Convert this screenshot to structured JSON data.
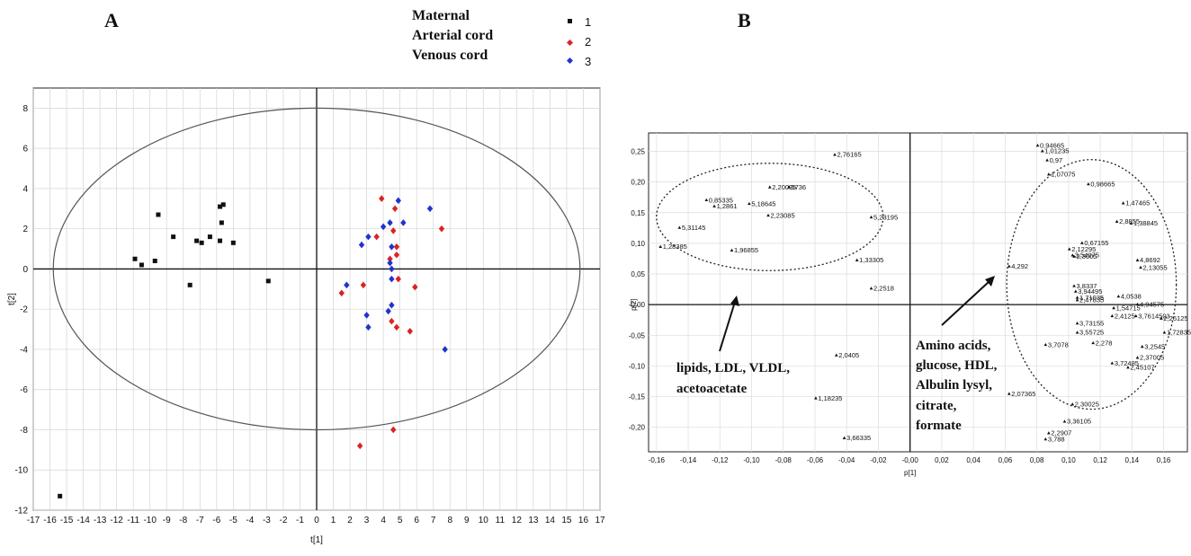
{
  "panel_labels": {
    "a": "A",
    "b": "B"
  },
  "chart_data": [
    {
      "type": "scatter",
      "panel": "A",
      "xlabel": "t[1]",
      "ylabel": "t[2]",
      "xlim": [
        -17,
        17
      ],
      "ylim": [
        -12,
        9
      ],
      "xticks": [
        -17,
        -16,
        -15,
        -14,
        -13,
        -12,
        -11,
        -10,
        -9,
        -8,
        -7,
        -6,
        -5,
        -4,
        -3,
        -2,
        -1,
        0,
        1,
        2,
        3,
        4,
        5,
        6,
        7,
        8,
        9,
        10,
        11,
        12,
        13,
        14,
        15,
        16,
        17
      ],
      "yticks": [
        -12,
        -10,
        -8,
        -6,
        -4,
        -2,
        0,
        2,
        4,
        6,
        8
      ],
      "grid": true,
      "ellipse": {
        "cx": 0,
        "cy": 0,
        "rx": 15.8,
        "ry": 8
      },
      "legend": {
        "position": "top",
        "entries": [
          {
            "name": "Maternal",
            "key": "1",
            "color": "#111111",
            "marker": "square"
          },
          {
            "name": "Arterial cord",
            "key": "2",
            "color": "#dd2222",
            "marker": "diamond"
          },
          {
            "name": "Venous cord",
            "key": "3",
            "color": "#2233cc",
            "marker": "diamond"
          }
        ]
      },
      "series": [
        {
          "name": "Maternal",
          "color": "#111111",
          "marker": "square",
          "points": [
            [
              -9.5,
              2.7
            ],
            [
              -8.6,
              1.6
            ],
            [
              -7.2,
              1.4
            ],
            [
              -6.9,
              1.3
            ],
            [
              -6.4,
              1.6
            ],
            [
              -5.8,
              3.1
            ],
            [
              -5.6,
              3.2
            ],
            [
              -5.7,
              2.3
            ],
            [
              -5.8,
              1.4
            ],
            [
              -5.0,
              1.3
            ],
            [
              -10.9,
              0.5
            ],
            [
              -10.5,
              0.2
            ],
            [
              -9.7,
              0.4
            ],
            [
              -7.6,
              -0.8
            ],
            [
              -2.9,
              -0.6
            ],
            [
              -15.4,
              -11.3
            ]
          ]
        },
        {
          "name": "Arterial cord",
          "color": "#dd2222",
          "marker": "diamond",
          "points": [
            [
              3.9,
              3.5
            ],
            [
              4.7,
              3.0
            ],
            [
              4.6,
              1.9
            ],
            [
              3.6,
              1.6
            ],
            [
              4.8,
              1.1
            ],
            [
              7.5,
              2.0
            ],
            [
              4.8,
              0.7
            ],
            [
              4.4,
              0.5
            ],
            [
              1.5,
              -1.2
            ],
            [
              2.8,
              -0.8
            ],
            [
              4.9,
              -0.5
            ],
            [
              5.9,
              -0.9
            ],
            [
              4.5,
              -2.6
            ],
            [
              4.8,
              -2.9
            ],
            [
              5.6,
              -3.1
            ],
            [
              2.6,
              -8.8
            ],
            [
              4.6,
              -8.0
            ]
          ]
        },
        {
          "name": "Venous cord",
          "color": "#2233cc",
          "marker": "diamond",
          "points": [
            [
              4.9,
              3.4
            ],
            [
              5.2,
              2.3
            ],
            [
              6.8,
              3.0
            ],
            [
              4.0,
              2.1
            ],
            [
              4.4,
              2.3
            ],
            [
              2.7,
              1.2
            ],
            [
              3.1,
              1.6
            ],
            [
              4.5,
              1.1
            ],
            [
              4.4,
              0.3
            ],
            [
              4.5,
              0.0
            ],
            [
              1.8,
              -0.8
            ],
            [
              4.5,
              -0.5
            ],
            [
              4.5,
              -1.8
            ],
            [
              3.0,
              -2.3
            ],
            [
              3.1,
              -2.9
            ],
            [
              4.3,
              -2.1
            ],
            [
              7.7,
              -4.0
            ]
          ]
        }
      ]
    },
    {
      "type": "scatter",
      "panel": "B",
      "xlabel": "p[1]",
      "ylabel": "p[2]",
      "xlim": [
        -0.165,
        0.175
      ],
      "ylim": [
        -0.24,
        0.28
      ],
      "xticks": [
        "-0,16",
        "-0,14",
        "-0,12",
        "-0,10",
        "-0,08",
        "-0,06",
        "-0,04",
        "-0,02",
        "-0,00",
        "0,02",
        "0,04",
        "0,06",
        "0,08",
        "0,10",
        "0,12",
        "0,14",
        "0,16"
      ],
      "xtick_values": [
        -0.16,
        -0.14,
        -0.12,
        -0.1,
        -0.08,
        -0.06,
        -0.04,
        -0.02,
        0,
        0.02,
        0.04,
        0.06,
        0.08,
        0.1,
        0.12,
        0.14,
        0.16
      ],
      "yticks": [
        "0,25",
        "0,20",
        "0,15",
        "0,10",
        "0,05",
        "-0,00",
        "-0,05",
        "-0,10",
        "-0,15",
        "-0,20"
      ],
      "ytick_values": [
        0.25,
        0.2,
        0.15,
        0.1,
        0.05,
        0,
        -0.05,
        -0.1,
        -0.15,
        -0.2
      ],
      "grid": true,
      "ellipses": [
        {
          "cx": -0.0885,
          "cy": 0.143,
          "rx": 0.0715,
          "ry": 0.0875
        },
        {
          "cx": 0.1145,
          "cy": 0.033,
          "rx": 0.0535,
          "ry": 0.2035
        }
      ],
      "points": [
        {
          "x": -0.0475,
          "y": 0.2445,
          "label": "2,76165"
        },
        {
          "x": -0.0885,
          "y": 0.1915,
          "label": "2,20095"
        },
        {
          "x": -0.0765,
          "y": 0.1915,
          "label": "5736"
        },
        {
          "x": -0.1285,
          "y": 0.1705,
          "label": "0,85335"
        },
        {
          "x": -0.1235,
          "y": 0.1605,
          "label": "1,2861"
        },
        {
          "x": -0.1015,
          "y": 0.1645,
          "label": "5,18645"
        },
        {
          "x": -0.0895,
          "y": 0.1455,
          "label": "2,23085"
        },
        {
          "x": -0.1455,
          "y": 0.1255,
          "label": "5,31145"
        },
        {
          "x": -0.1575,
          "y": 0.0945,
          "label": "1,28385"
        },
        {
          "x": -0.1125,
          "y": 0.0885,
          "label": "1,96855"
        },
        {
          "x": -0.0245,
          "y": 0.1425,
          "label": "5,23195"
        },
        {
          "x": -0.0335,
          "y": 0.0725,
          "label": "1,33305"
        },
        {
          "x": -0.0245,
          "y": 0.0265,
          "label": "2,2518"
        },
        {
          "x": -0.0465,
          "y": -0.0825,
          "label": "2,0405"
        },
        {
          "x": -0.0595,
          "y": -0.1525,
          "label": "1,18235"
        },
        {
          "x": -0.0415,
          "y": -0.2175,
          "label": "3,66335"
        },
        {
          "x": 0.0625,
          "y": 0.0625,
          "label": "4,292"
        },
        {
          "x": 0.0805,
          "y": 0.2595,
          "label": "0,94665"
        },
        {
          "x": 0.0835,
          "y": 0.2505,
          "label": "1,01235"
        },
        {
          "x": 0.0865,
          "y": 0.2355,
          "label": "0,97"
        },
        {
          "x": 0.0875,
          "y": 0.2125,
          "label": "1,07075"
        },
        {
          "x": 0.1125,
          "y": 0.1965,
          "label": "0,98665"
        },
        {
          "x": 0.1345,
          "y": 0.1655,
          "label": "1,47465"
        },
        {
          "x": 0.1305,
          "y": 0.1355,
          "label": "2,8855"
        },
        {
          "x": 0.1395,
          "y": 0.1325,
          "label": "1,38845"
        },
        {
          "x": 0.1085,
          "y": 0.1005,
          "label": "0,67155"
        },
        {
          "x": 0.1005,
          "y": 0.0905,
          "label": "2,12295"
        },
        {
          "x": 0.1025,
          "y": 0.0805,
          "label": "3,54075"
        },
        {
          "x": 0.1035,
          "y": 0.0785,
          "label": "2,3005"
        },
        {
          "x": 0.1435,
          "y": 0.0725,
          "label": "4,8692"
        },
        {
          "x": 0.1455,
          "y": 0.0605,
          "label": "2,13055"
        },
        {
          "x": 0.1035,
          "y": 0.0305,
          "label": "3,8337"
        },
        {
          "x": 0.1045,
          "y": 0.0215,
          "label": "3,94495"
        },
        {
          "x": 0.1055,
          "y": 0.0115,
          "label": "1,71035"
        },
        {
          "x": 0.1055,
          "y": 0.0075,
          "label": "2,47835"
        },
        {
          "x": 0.1315,
          "y": 0.0135,
          "label": "4,0538"
        },
        {
          "x": 0.1435,
          "y": 0.0005,
          "label": "4,94575"
        },
        {
          "x": 0.1285,
          "y": -0.0055,
          "label": "1,54715"
        },
        {
          "x": 0.1425,
          "y": -0.0185,
          "label": "3,7614503"
        },
        {
          "x": 0.1585,
          "y": -0.0225,
          "label": "2,26125"
        },
        {
          "x": 0.1275,
          "y": -0.0185,
          "label": "2,4125"
        },
        {
          "x": 0.1055,
          "y": -0.0305,
          "label": "3,73155"
        },
        {
          "x": 0.1055,
          "y": -0.0455,
          "label": "3,55725"
        },
        {
          "x": 0.1155,
          "y": -0.0625,
          "label": "2,278"
        },
        {
          "x": 0.0855,
          "y": -0.0655,
          "label": "3,7078"
        },
        {
          "x": 0.1605,
          "y": -0.0455,
          "label": "1,72835"
        },
        {
          "x": 0.1465,
          "y": -0.0685,
          "label": "3,2545"
        },
        {
          "x": 0.1435,
          "y": -0.0865,
          "label": "2,37005"
        },
        {
          "x": 0.1275,
          "y": -0.0955,
          "label": "3,72485"
        },
        {
          "x": 0.1375,
          "y": -0.1025,
          "label": "2,45107"
        },
        {
          "x": 0.0625,
          "y": -0.1455,
          "label": "2,07365"
        },
        {
          "x": 0.1025,
          "y": -0.1625,
          "label": "2,30025"
        },
        {
          "x": 0.0975,
          "y": -0.1905,
          "label": "3,36105"
        },
        {
          "x": 0.0875,
          "y": -0.2095,
          "label": "2,2907"
        },
        {
          "x": 0.0855,
          "y": -0.2195,
          "label": "3,788"
        }
      ],
      "annotations": [
        {
          "lines": [
            "lipids, LDL, VLDL,",
            "acetoacetate"
          ]
        },
        {
          "lines": [
            "Amino acids,",
            "glucose, HDL,",
            "Albulin lysyl,",
            "citrate,",
            "formate"
          ]
        }
      ]
    }
  ]
}
